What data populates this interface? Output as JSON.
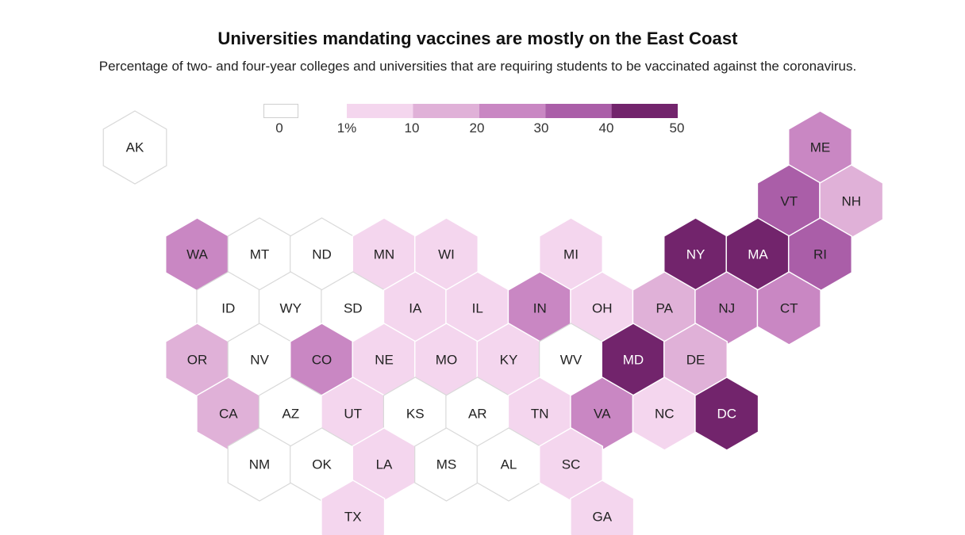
{
  "title": "Universities mandating vaccines are mostly on the East Coast",
  "subtitle": "Percentage of two- and four-year colleges and universities that are requiring students to be vaccinated against the coronavirus.",
  "colors": {
    "zero": "#ffffff",
    "bin1": "#f4d6ee",
    "bin2": "#e0b1d8",
    "bin3": "#c987c3",
    "bin4": "#aa5ea8",
    "bin5": "#72246c",
    "stroke_zero": "#d9d9d9",
    "stroke_filled": "#ffffff",
    "label_dark": "#222222",
    "label_light": "#ffffff"
  },
  "chart_data": {
    "type": "hex-tile-choropleth",
    "title": "Universities mandating vaccines are mostly on the East Coast",
    "subtitle": "Percentage of two- and four-year colleges and universities that are requiring students to be vaccinated against the coronavirus.",
    "unit": "percent",
    "legend": {
      "zero_label": "0",
      "tick_labels": [
        "1%",
        "10",
        "20",
        "30",
        "40",
        "50"
      ],
      "bins": [
        {
          "from": 1,
          "to": 10,
          "color_key": "bin1"
        },
        {
          "from": 10,
          "to": 20,
          "color_key": "bin2"
        },
        {
          "from": 20,
          "to": 30,
          "color_key": "bin3"
        },
        {
          "from": 30,
          "to": 40,
          "color_key": "bin4"
        },
        {
          "from": 40,
          "to": 50,
          "color_key": "bin5"
        }
      ]
    },
    "states": [
      {
        "code": "AK",
        "col": 0,
        "row": 0,
        "bin": 0
      },
      {
        "code": "ME",
        "col": 11,
        "row": 0,
        "bin": 3
      },
      {
        "code": "VT",
        "col": 10,
        "row": 1,
        "bin": 4
      },
      {
        "code": "NH",
        "col": 11,
        "row": 1,
        "bin": 2
      },
      {
        "code": "WA",
        "col": 1,
        "row": 2,
        "bin": 3
      },
      {
        "code": "MT",
        "col": 2,
        "row": 2,
        "bin": 0
      },
      {
        "code": "ND",
        "col": 3,
        "row": 2,
        "bin": 0
      },
      {
        "code": "MN",
        "col": 4,
        "row": 2,
        "bin": 1
      },
      {
        "code": "WI",
        "col": 5,
        "row": 2,
        "bin": 1
      },
      {
        "code": "MI",
        "col": 7,
        "row": 2,
        "bin": 1
      },
      {
        "code": "NY",
        "col": 9,
        "row": 2,
        "bin": 5
      },
      {
        "code": "MA",
        "col": 10,
        "row": 2,
        "bin": 5
      },
      {
        "code": "RI",
        "col": 11,
        "row": 2,
        "bin": 4
      },
      {
        "code": "ID",
        "col": 1,
        "row": 3,
        "bin": 0
      },
      {
        "code": "WY",
        "col": 2,
        "row": 3,
        "bin": 0
      },
      {
        "code": "SD",
        "col": 3,
        "row": 3,
        "bin": 0
      },
      {
        "code": "IA",
        "col": 4,
        "row": 3,
        "bin": 1
      },
      {
        "code": "IL",
        "col": 5,
        "row": 3,
        "bin": 1
      },
      {
        "code": "IN",
        "col": 6,
        "row": 3,
        "bin": 3
      },
      {
        "code": "OH",
        "col": 7,
        "row": 3,
        "bin": 1
      },
      {
        "code": "PA",
        "col": 8,
        "row": 3,
        "bin": 2
      },
      {
        "code": "NJ",
        "col": 9,
        "row": 3,
        "bin": 3
      },
      {
        "code": "CT",
        "col": 10,
        "row": 3,
        "bin": 3
      },
      {
        "code": "OR",
        "col": 1,
        "row": 4,
        "bin": 2
      },
      {
        "code": "NV",
        "col": 2,
        "row": 4,
        "bin": 0
      },
      {
        "code": "CO",
        "col": 3,
        "row": 4,
        "bin": 3
      },
      {
        "code": "NE",
        "col": 4,
        "row": 4,
        "bin": 1
      },
      {
        "code": "MO",
        "col": 5,
        "row": 4,
        "bin": 1
      },
      {
        "code": "KY",
        "col": 6,
        "row": 4,
        "bin": 1
      },
      {
        "code": "WV",
        "col": 7,
        "row": 4,
        "bin": 0
      },
      {
        "code": "MD",
        "col": 8,
        "row": 4,
        "bin": 5
      },
      {
        "code": "DE",
        "col": 9,
        "row": 4,
        "bin": 2
      },
      {
        "code": "CA",
        "col": 1,
        "row": 5,
        "bin": 2
      },
      {
        "code": "AZ",
        "col": 2,
        "row": 5,
        "bin": 0
      },
      {
        "code": "UT",
        "col": 3,
        "row": 5,
        "bin": 1
      },
      {
        "code": "KS",
        "col": 4,
        "row": 5,
        "bin": 0
      },
      {
        "code": "AR",
        "col": 5,
        "row": 5,
        "bin": 0
      },
      {
        "code": "TN",
        "col": 6,
        "row": 5,
        "bin": 1
      },
      {
        "code": "VA",
        "col": 7,
        "row": 5,
        "bin": 3
      },
      {
        "code": "NC",
        "col": 8,
        "row": 5,
        "bin": 1
      },
      {
        "code": "DC",
        "col": 9,
        "row": 5,
        "bin": 5
      },
      {
        "code": "NM",
        "col": 2,
        "row": 6,
        "bin": 0
      },
      {
        "code": "OK",
        "col": 3,
        "row": 6,
        "bin": 0
      },
      {
        "code": "LA",
        "col": 4,
        "row": 6,
        "bin": 1
      },
      {
        "code": "MS",
        "col": 5,
        "row": 6,
        "bin": 0
      },
      {
        "code": "AL",
        "col": 6,
        "row": 6,
        "bin": 0
      },
      {
        "code": "SC",
        "col": 7,
        "row": 6,
        "bin": 1
      },
      {
        "code": "TX",
        "col": 3,
        "row": 7,
        "bin": 1
      },
      {
        "code": "GA",
        "col": 7,
        "row": 7,
        "bin": 1
      }
    ]
  }
}
